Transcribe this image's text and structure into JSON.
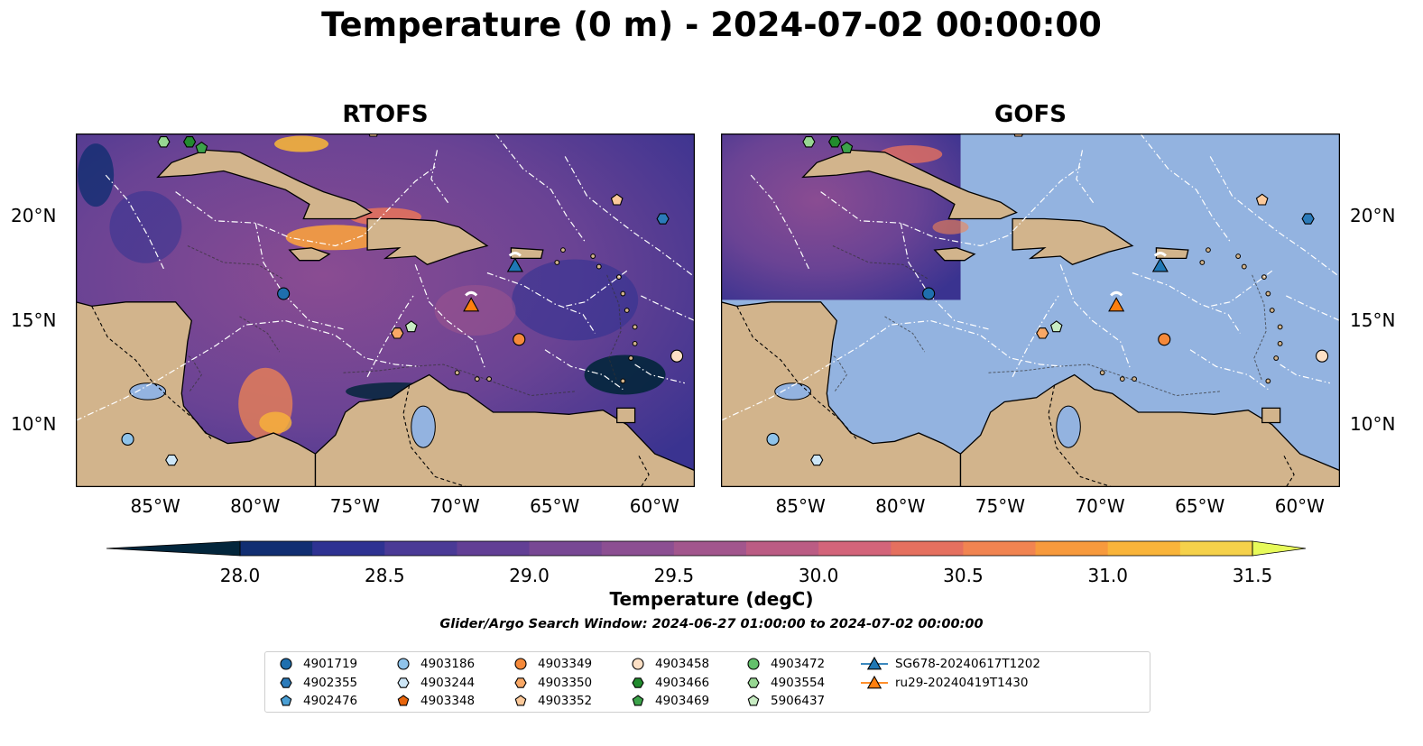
{
  "title": "Temperature (0 m) - 2024-07-02 00:00:00",
  "panels": [
    {
      "title": "RTOFS",
      "mode": "full"
    },
    {
      "title": "GOFS",
      "mode": "partial"
    }
  ],
  "map": {
    "lon_range": [
      -89,
      -58
    ],
    "lat_range": [
      7,
      24
    ],
    "x_ticks": [
      {
        "lon": -85,
        "label": "85°W"
      },
      {
        "lon": -80,
        "label": "80°W"
      },
      {
        "lon": -75,
        "label": "75°W"
      },
      {
        "lon": -70,
        "label": "70°W"
      },
      {
        "lon": -65,
        "label": "65°W"
      },
      {
        "lon": -60,
        "label": "60°W"
      }
    ],
    "y_ticks": [
      {
        "lat": 20,
        "label": "20°N"
      },
      {
        "lat": 15,
        "label": "15°N"
      },
      {
        "lat": 10,
        "label": "10°N"
      }
    ],
    "gofs_data_extent": {
      "lon": [
        -89,
        -77
      ],
      "lat": [
        16,
        24
      ]
    },
    "colors": {
      "land": "#d2b48c",
      "no_data_ocean": "#93b3e0",
      "coast": "#000000",
      "eez": "#ffffff"
    }
  },
  "colorbar": {
    "label": "Temperature (degC)",
    "vmin": 28.0,
    "vmax": 31.5,
    "ticks": [
      "28.0",
      "28.5",
      "29.0",
      "29.5",
      "30.0",
      "30.5",
      "31.0",
      "31.5"
    ],
    "colors": [
      "#03263c",
      "#112e72",
      "#2e3292",
      "#4a3a96",
      "#623f95",
      "#784894",
      "#8c4f92",
      "#a2568d",
      "#bb5c84",
      "#d3647a",
      "#e5705f",
      "#f18451",
      "#f79a3d",
      "#f9b43a",
      "#f5d14a",
      "#e7fa5a"
    ]
  },
  "search_window": "Glider/Argo Search Window: 2024-06-27 01:00:00 to 2024-07-02 00:00:00",
  "legend": [
    {
      "label": "4901719",
      "marker": "circle",
      "color": "#1f6fae"
    },
    {
      "label": "4902355",
      "marker": "hexagon",
      "color": "#2b7bba"
    },
    {
      "label": "4902476",
      "marker": "pentagon",
      "color": "#4a9fd4"
    },
    {
      "label": "4903186",
      "marker": "circle",
      "color": "#8fc3ea"
    },
    {
      "label": "4903244",
      "marker": "hexagon",
      "color": "#cde6f7"
    },
    {
      "label": "4903348",
      "marker": "pentagon",
      "color": "#e8650c"
    },
    {
      "label": "4903349",
      "marker": "circle",
      "color": "#f5893a"
    },
    {
      "label": "4903350",
      "marker": "hexagon",
      "color": "#f9a866"
    },
    {
      "label": "4903352",
      "marker": "pentagon",
      "color": "#fcc99a"
    },
    {
      "label": "4903458",
      "marker": "circle",
      "color": "#fde0c5"
    },
    {
      "label": "4903466",
      "marker": "hexagon",
      "color": "#228b2e"
    },
    {
      "label": "4903469",
      "marker": "pentagon",
      "color": "#3ca34a"
    },
    {
      "label": "4903472",
      "marker": "circle",
      "color": "#63c06b"
    },
    {
      "label": "4903554",
      "marker": "hexagon",
      "color": "#97d792"
    },
    {
      "label": "5906437",
      "marker": "pentagon",
      "color": "#c8ecc3"
    },
    {
      "label": "SG678-20240617T1202",
      "marker": "triangle-line",
      "color": "#1f77b4"
    },
    {
      "label": "ru29-20240419T1430",
      "marker": "triangle-line",
      "color": "#ff7f0e"
    }
  ],
  "floats": [
    {
      "id": "4901719",
      "lon": -78.6,
      "lat": 16.3
    },
    {
      "id": "4902355",
      "lon": -59.6,
      "lat": 19.9
    },
    {
      "id": "4902476",
      "lon": -85.0,
      "lat": 24.2
    },
    {
      "id": "4903186",
      "lon": -86.4,
      "lat": 9.3
    },
    {
      "id": "4903244",
      "lon": -84.2,
      "lat": 8.3
    },
    {
      "id": "4903349",
      "lon": -66.8,
      "lat": 14.1
    },
    {
      "id": "4903350",
      "lon": -72.9,
      "lat": 14.4
    },
    {
      "id": "4903352",
      "lon": -61.9,
      "lat": 20.8
    },
    {
      "id": "4903352",
      "lon": -74.1,
      "lat": 24.1
    },
    {
      "id": "4903458",
      "lon": -58.9,
      "lat": 13.3
    },
    {
      "id": "4903466",
      "lon": -83.3,
      "lat": 23.6
    },
    {
      "id": "4903469",
      "lon": -82.7,
      "lat": 23.3
    },
    {
      "id": "4903554",
      "lon": -84.6,
      "lat": 23.6
    },
    {
      "id": "5906437",
      "lon": -72.2,
      "lat": 14.7
    }
  ],
  "gliders": [
    {
      "id": "SG678-20240617T1202",
      "lon": -67.0,
      "lat": 17.6
    },
    {
      "id": "ru29-20240419T1430",
      "lon": -69.2,
      "lat": 15.7
    }
  ]
}
